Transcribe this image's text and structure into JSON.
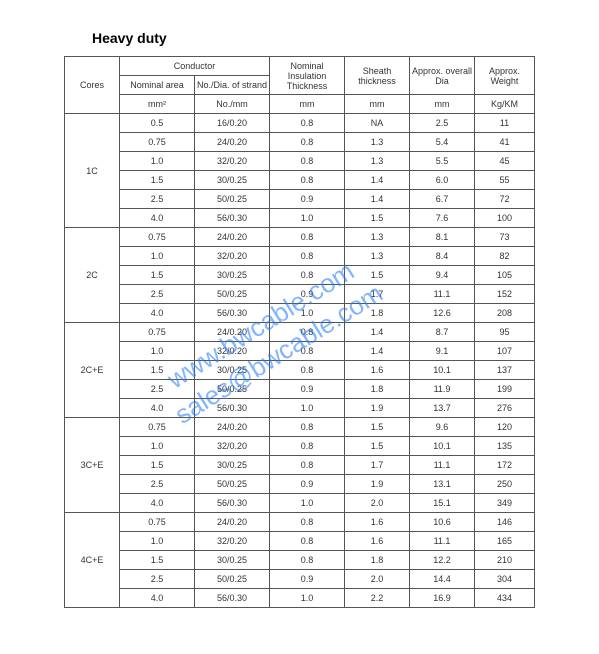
{
  "title": "Heavy duty",
  "headers": {
    "cores": "Cores",
    "conductor": "Conductor",
    "nominal_area": "Nominal area",
    "strand": "No./Dia. of strand",
    "insul": "Nominal Insulation Thickness",
    "sheath": "Sheath thickness",
    "overall": "Approx. overall Dia",
    "weight": "Approx. Weight"
  },
  "units": {
    "area": "mm²",
    "strand": "No./mm",
    "insul": "mm",
    "sheath": "mm",
    "overall": "mm",
    "weight": "Kg/KM"
  },
  "groups": [
    {
      "cores": "1C",
      "rows": [
        {
          "area": "0.5",
          "strand": "16/0.20",
          "insul": "0.8",
          "sheath": "NA",
          "dia": "2.5",
          "weight": "11"
        },
        {
          "area": "0.75",
          "strand": "24/0.20",
          "insul": "0.8",
          "sheath": "1.3",
          "dia": "5.4",
          "weight": "41"
        },
        {
          "area": "1.0",
          "strand": "32/0.20",
          "insul": "0.8",
          "sheath": "1.3",
          "dia": "5.5",
          "weight": "45"
        },
        {
          "area": "1.5",
          "strand": "30/0.25",
          "insul": "0.8",
          "sheath": "1.4",
          "dia": "6.0",
          "weight": "55"
        },
        {
          "area": "2.5",
          "strand": "50/0.25",
          "insul": "0.9",
          "sheath": "1.4",
          "dia": "6.7",
          "weight": "72"
        },
        {
          "area": "4.0",
          "strand": "56/0.30",
          "insul": "1.0",
          "sheath": "1.5",
          "dia": "7.6",
          "weight": "100"
        }
      ]
    },
    {
      "cores": "2C",
      "rows": [
        {
          "area": "0.75",
          "strand": "24/0.20",
          "insul": "0.8",
          "sheath": "1.3",
          "dia": "8.1",
          "weight": "73"
        },
        {
          "area": "1.0",
          "strand": "32/0.20",
          "insul": "0.8",
          "sheath": "1.3",
          "dia": "8.4",
          "weight": "82"
        },
        {
          "area": "1.5",
          "strand": "30/0.25",
          "insul": "0.8",
          "sheath": "1.5",
          "dia": "9.4",
          "weight": "105"
        },
        {
          "area": "2.5",
          "strand": "50/0.25",
          "insul": "0.9",
          "sheath": "1.7",
          "dia": "11.1",
          "weight": "152"
        },
        {
          "area": "4.0",
          "strand": "56/0.30",
          "insul": "1.0",
          "sheath": "1.8",
          "dia": "12.6",
          "weight": "208"
        }
      ]
    },
    {
      "cores": "2C+E",
      "rows": [
        {
          "area": "0.75",
          "strand": "24/0.20",
          "insul": "0.8",
          "sheath": "1.4",
          "dia": "8.7",
          "weight": "95"
        },
        {
          "area": "1.0",
          "strand": "32/0.20",
          "insul": "0.8",
          "sheath": "1.4",
          "dia": "9.1",
          "weight": "107"
        },
        {
          "area": "1.5",
          "strand": "30/0.25",
          "insul": "0.8",
          "sheath": "1.6",
          "dia": "10.1",
          "weight": "137"
        },
        {
          "area": "2.5",
          "strand": "50/0.25",
          "insul": "0.9",
          "sheath": "1.8",
          "dia": "11.9",
          "weight": "199"
        },
        {
          "area": "4.0",
          "strand": "56/0.30",
          "insul": "1.0",
          "sheath": "1.9",
          "dia": "13.7",
          "weight": "276"
        }
      ]
    },
    {
      "cores": "3C+E",
      "rows": [
        {
          "area": "0.75",
          "strand": "24/0.20",
          "insul": "0.8",
          "sheath": "1.5",
          "dia": "9.6",
          "weight": "120"
        },
        {
          "area": "1.0",
          "strand": "32/0.20",
          "insul": "0.8",
          "sheath": "1.5",
          "dia": "10.1",
          "weight": "135"
        },
        {
          "area": "1.5",
          "strand": "30/0.25",
          "insul": "0.8",
          "sheath": "1.7",
          "dia": "11.1",
          "weight": "172"
        },
        {
          "area": "2.5",
          "strand": "50/0.25",
          "insul": "0.9",
          "sheath": "1.9",
          "dia": "13.1",
          "weight": "250"
        },
        {
          "area": "4.0",
          "strand": "56/0.30",
          "insul": "1.0",
          "sheath": "2.0",
          "dia": "15.1",
          "weight": "349"
        }
      ]
    },
    {
      "cores": "4C+E",
      "rows": [
        {
          "area": "0.75",
          "strand": "24/0.20",
          "insul": "0.8",
          "sheath": "1.6",
          "dia": "10.6",
          "weight": "146"
        },
        {
          "area": "1.0",
          "strand": "32/0.20",
          "insul": "0.8",
          "sheath": "1.6",
          "dia": "11.1",
          "weight": "165"
        },
        {
          "area": "1.5",
          "strand": "30/0.25",
          "insul": "0.8",
          "sheath": "1.8",
          "dia": "12.2",
          "weight": "210"
        },
        {
          "area": "2.5",
          "strand": "50/0.25",
          "insul": "0.9",
          "sheath": "2.0",
          "dia": "14.4",
          "weight": "304"
        },
        {
          "area": "4.0",
          "strand": "56/0.30",
          "insul": "1.0",
          "sheath": "2.2",
          "dia": "16.9",
          "weight": "434"
        }
      ]
    }
  ],
  "watermark": {
    "line1": "www.bwcable.com",
    "line2": "sales@bwcable.com",
    "color": "rgba(30,120,255,0.55)"
  }
}
